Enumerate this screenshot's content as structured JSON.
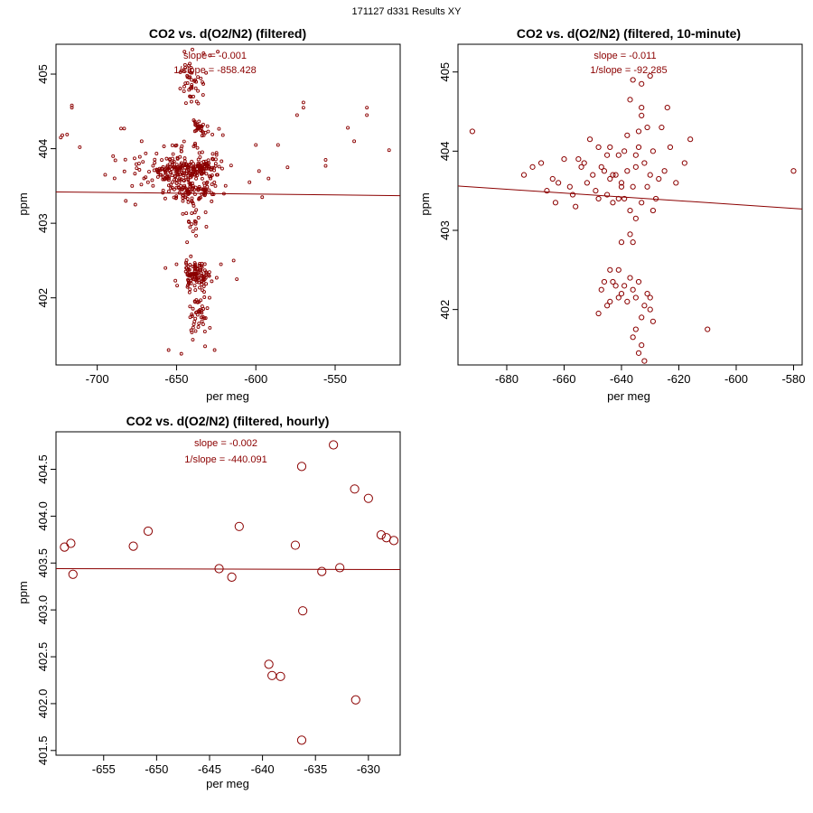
{
  "page_title": "171127  d331  Results XY",
  "colors": {
    "points": "#8b0000",
    "fit": "#8b0000",
    "text": "#8b0000",
    "axes": "#000000"
  },
  "chart_data": [
    {
      "type": "scatter",
      "id": "raw",
      "title": "CO2 vs. d(O2/N2) (filtered)",
      "xlabel": "per meg",
      "ylabel": "ppm",
      "xlim": [
        -726,
        -509
      ],
      "ylim": [
        401.1,
        405.4
      ],
      "xticks": [
        -700,
        -650,
        -600,
        -550
      ],
      "yticks": [
        402,
        403,
        404,
        405
      ],
      "ytick_labels": [
        "402",
        "403",
        "404",
        "405"
      ],
      "slope_label": "slope = -0.001",
      "inv_slope_label": "1/slope = -858.428",
      "fit": {
        "x0": -726,
        "y0": 403.42,
        "x1": -509,
        "y1": 403.37
      },
      "marker_size": "small",
      "generated_points": {
        "seed": 17,
        "clusters": [
          {
            "n": 120,
            "cx": -648,
            "cy": 403.7,
            "sx": 14,
            "sy": 0.12
          },
          {
            "n": 70,
            "cx": -633,
            "cy": 403.75,
            "sx": 10,
            "sy": 0.12
          },
          {
            "n": 100,
            "cx": -641,
            "cy": 403.45,
            "sx": 14,
            "sy": 0.13
          },
          {
            "n": 25,
            "cx": -635,
            "cy": 404.3,
            "sx": 4,
            "sy": 0.08
          },
          {
            "n": 45,
            "cx": -641,
            "cy": 404.9,
            "sx": 7,
            "sy": 0.3
          },
          {
            "n": 40,
            "cx": -640,
            "cy": 404.0,
            "sx": 18,
            "sy": 0.3
          },
          {
            "n": 25,
            "cx": -640,
            "cy": 403.1,
            "sx": 6,
            "sy": 0.25
          },
          {
            "n": 110,
            "cx": -638,
            "cy": 402.3,
            "sx": 8,
            "sy": 0.17
          },
          {
            "n": 45,
            "cx": -636,
            "cy": 401.75,
            "sx": 6,
            "sy": 0.22
          },
          {
            "n": 45,
            "cx": -660,
            "cy": 403.72,
            "sx": 22,
            "sy": 0.22
          }
        ]
      },
      "points": [
        {
          "x": -722,
          "y": 404.18
        },
        {
          "x": -716,
          "y": 404.58
        },
        {
          "x": -716,
          "y": 404.55
        },
        {
          "x": -719,
          "y": 404.19
        },
        {
          "x": -723,
          "y": 404.15
        },
        {
          "x": -711,
          "y": 404.02
        },
        {
          "x": -685,
          "y": 404.27
        },
        {
          "x": -683,
          "y": 404.27
        },
        {
          "x": -695,
          "y": 403.65
        },
        {
          "x": -690,
          "y": 403.9
        },
        {
          "x": -682,
          "y": 403.3
        },
        {
          "x": -678,
          "y": 403.5
        },
        {
          "x": -676,
          "y": 403.25
        },
        {
          "x": -672,
          "y": 404.1
        },
        {
          "x": -668,
          "y": 403.55
        },
        {
          "x": -604,
          "y": 403.55
        },
        {
          "x": -600,
          "y": 404.05
        },
        {
          "x": -598,
          "y": 403.7
        },
        {
          "x": -596,
          "y": 403.35
        },
        {
          "x": -592,
          "y": 403.6
        },
        {
          "x": -586,
          "y": 404.05
        },
        {
          "x": -580,
          "y": 403.75
        },
        {
          "x": -574,
          "y": 404.45
        },
        {
          "x": -570,
          "y": 404.62
        },
        {
          "x": -570,
          "y": 404.55
        },
        {
          "x": -556,
          "y": 403.85
        },
        {
          "x": -556,
          "y": 403.77
        },
        {
          "x": -542,
          "y": 404.28
        },
        {
          "x": -538,
          "y": 404.1
        },
        {
          "x": -530,
          "y": 404.55
        },
        {
          "x": -530,
          "y": 404.45
        },
        {
          "x": -516,
          "y": 403.98
        },
        {
          "x": -614,
          "y": 402.5
        },
        {
          "x": -612,
          "y": 402.25
        },
        {
          "x": -622,
          "y": 402.45
        },
        {
          "x": -650,
          "y": 402.45
        },
        {
          "x": -657,
          "y": 402.4
        },
        {
          "x": -632,
          "y": 401.35
        },
        {
          "x": -647,
          "y": 401.25
        },
        {
          "x": -655,
          "y": 401.3
        },
        {
          "x": -626,
          "y": 401.3
        },
        {
          "x": -645,
          "y": 405.3
        },
        {
          "x": -640,
          "y": 405.33
        },
        {
          "x": -633,
          "y": 405.28
        },
        {
          "x": -629,
          "y": 405.25
        },
        {
          "x": -624,
          "y": 405.3
        }
      ]
    },
    {
      "type": "scatter",
      "id": "ten-minute",
      "title": "CO2 vs. d(O2/N2) (filtered, 10-minute)",
      "xlabel": "per meg",
      "ylabel": "ppm",
      "xlim": [
        -697,
        -577
      ],
      "ylim": [
        401.3,
        405.35
      ],
      "xticks": [
        -680,
        -660,
        -640,
        -620,
        -600,
        -580
      ],
      "yticks": [
        402,
        403,
        404,
        405
      ],
      "ytick_labels": [
        "402",
        "403",
        "404",
        "405"
      ],
      "slope_label": "slope = -0.011",
      "inv_slope_label": "1/slope = -92.285",
      "fit": {
        "x0": -697,
        "y0": 403.56,
        "x1": -577,
        "y1": 403.27
      },
      "marker_size": "medium",
      "points": [
        {
          "x": -692,
          "y": 404.25
        },
        {
          "x": -671,
          "y": 403.8
        },
        {
          "x": -674,
          "y": 403.7
        },
        {
          "x": -664,
          "y": 403.65
        },
        {
          "x": -663,
          "y": 403.35
        },
        {
          "x": -660,
          "y": 403.9
        },
        {
          "x": -658,
          "y": 403.55
        },
        {
          "x": -657,
          "y": 403.45
        },
        {
          "x": -656,
          "y": 403.3
        },
        {
          "x": -654,
          "y": 403.8
        },
        {
          "x": -653,
          "y": 403.85
        },
        {
          "x": -652,
          "y": 403.6
        },
        {
          "x": -651,
          "y": 404.15
        },
        {
          "x": -650,
          "y": 403.7
        },
        {
          "x": -649,
          "y": 403.5
        },
        {
          "x": -648,
          "y": 404.05
        },
        {
          "x": -647,
          "y": 403.8
        },
        {
          "x": -646,
          "y": 403.75
        },
        {
          "x": -645,
          "y": 403.95
        },
        {
          "x": -644,
          "y": 403.65
        },
        {
          "x": -643,
          "y": 403.35
        },
        {
          "x": -642,
          "y": 403.7
        },
        {
          "x": -641,
          "y": 403.4
        },
        {
          "x": -640,
          "y": 403.6
        },
        {
          "x": -639,
          "y": 404.0
        },
        {
          "x": -638,
          "y": 403.75
        },
        {
          "x": -637,
          "y": 404.65
        },
        {
          "x": -636,
          "y": 403.55
        },
        {
          "x": -635,
          "y": 403.95
        },
        {
          "x": -634,
          "y": 404.25
        },
        {
          "x": -633,
          "y": 404.45
        },
        {
          "x": -633,
          "y": 404.55
        },
        {
          "x": -632,
          "y": 403.85
        },
        {
          "x": -631,
          "y": 404.3
        },
        {
          "x": -630,
          "y": 403.7
        },
        {
          "x": -629,
          "y": 404.0
        },
        {
          "x": -628,
          "y": 403.4
        },
        {
          "x": -627,
          "y": 403.65
        },
        {
          "x": -626,
          "y": 404.3
        },
        {
          "x": -625,
          "y": 403.75
        },
        {
          "x": -624,
          "y": 404.55
        },
        {
          "x": -623,
          "y": 404.05
        },
        {
          "x": -621,
          "y": 403.6
        },
        {
          "x": -618,
          "y": 403.85
        },
        {
          "x": -616,
          "y": 404.15
        },
        {
          "x": -648,
          "y": 403.4
        },
        {
          "x": -645,
          "y": 403.45
        },
        {
          "x": -643,
          "y": 403.7
        },
        {
          "x": -641,
          "y": 403.95
        },
        {
          "x": -639,
          "y": 403.4
        },
        {
          "x": -637,
          "y": 403.25
        },
        {
          "x": -635,
          "y": 403.8
        },
        {
          "x": -633,
          "y": 403.35
        },
        {
          "x": -631,
          "y": 403.55
        },
        {
          "x": -629,
          "y": 403.25
        },
        {
          "x": -636,
          "y": 404.9
        },
        {
          "x": -633,
          "y": 404.85
        },
        {
          "x": -630,
          "y": 404.95
        },
        {
          "x": -638,
          "y": 404.2
        },
        {
          "x": -634,
          "y": 404.05
        },
        {
          "x": -662,
          "y": 403.6
        },
        {
          "x": -666,
          "y": 403.5
        },
        {
          "x": -668,
          "y": 403.85
        },
        {
          "x": -655,
          "y": 403.9
        },
        {
          "x": -644,
          "y": 404.05
        },
        {
          "x": -640,
          "y": 403.55
        },
        {
          "x": -580,
          "y": 403.75
        },
        {
          "x": -640,
          "y": 402.85
        },
        {
          "x": -636,
          "y": 402.85
        },
        {
          "x": -635,
          "y": 403.15
        },
        {
          "x": -637,
          "y": 402.95
        },
        {
          "x": -643,
          "y": 402.35
        },
        {
          "x": -641,
          "y": 402.5
        },
        {
          "x": -640,
          "y": 402.2
        },
        {
          "x": -639,
          "y": 402.3
        },
        {
          "x": -638,
          "y": 402.1
        },
        {
          "x": -637,
          "y": 402.4
        },
        {
          "x": -636,
          "y": 402.25
        },
        {
          "x": -635,
          "y": 402.15
        },
        {
          "x": -634,
          "y": 402.35
        },
        {
          "x": -633,
          "y": 401.9
        },
        {
          "x": -632,
          "y": 402.05
        },
        {
          "x": -631,
          "y": 402.2
        },
        {
          "x": -630,
          "y": 402.0
        },
        {
          "x": -629,
          "y": 401.85
        },
        {
          "x": -648,
          "y": 401.95
        },
        {
          "x": -645,
          "y": 402.05
        },
        {
          "x": -644,
          "y": 402.5
        },
        {
          "x": -642,
          "y": 402.3
        },
        {
          "x": -636,
          "y": 401.65
        },
        {
          "x": -635,
          "y": 401.75
        },
        {
          "x": -633,
          "y": 401.55
        },
        {
          "x": -634,
          "y": 401.45
        },
        {
          "x": -632,
          "y": 401.35
        },
        {
          "x": -646,
          "y": 402.35
        },
        {
          "x": -647,
          "y": 402.25
        },
        {
          "x": -641,
          "y": 402.15
        },
        {
          "x": -610,
          "y": 401.75
        },
        {
          "x": -630,
          "y": 402.15
        },
        {
          "x": -644,
          "y": 402.1
        }
      ]
    },
    {
      "type": "scatter",
      "id": "hourly",
      "title": "CO2 vs. d(O2/N2) (filtered, hourly)",
      "xlabel": "per meg",
      "ylabel": "ppm",
      "xlim": [
        -659.5,
        -627.0
      ],
      "ylim": [
        401.45,
        404.9
      ],
      "xticks": [
        -655,
        -650,
        -645,
        -640,
        -635,
        -630
      ],
      "yticks": [
        401.5,
        402.0,
        402.5,
        403.0,
        403.5,
        404.0,
        404.5
      ],
      "ytick_labels": [
        "401.5",
        "402.0",
        "402.5",
        "403.0",
        "403.5",
        "404.0",
        "404.5"
      ],
      "slope_label": "slope = -0.002",
      "inv_slope_label": "1/slope = -440.091",
      "fit": {
        "x0": -659.5,
        "y0": 403.44,
        "x1": -627.0,
        "y1": 403.43
      },
      "marker_size": "large",
      "points": [
        {
          "x": -658.7,
          "y": 403.67
        },
        {
          "x": -658.1,
          "y": 403.71
        },
        {
          "x": -657.9,
          "y": 403.38
        },
        {
          "x": -652.2,
          "y": 403.68
        },
        {
          "x": -650.8,
          "y": 403.84
        },
        {
          "x": -644.1,
          "y": 403.44
        },
        {
          "x": -642.9,
          "y": 403.35
        },
        {
          "x": -642.2,
          "y": 403.89
        },
        {
          "x": -639.4,
          "y": 402.42
        },
        {
          "x": -639.1,
          "y": 402.3
        },
        {
          "x": -638.3,
          "y": 402.29
        },
        {
          "x": -636.9,
          "y": 403.69
        },
        {
          "x": -636.3,
          "y": 404.53
        },
        {
          "x": -636.2,
          "y": 402.99
        },
        {
          "x": -636.3,
          "y": 401.61
        },
        {
          "x": -634.4,
          "y": 403.41
        },
        {
          "x": -633.3,
          "y": 404.76
        },
        {
          "x": -632.7,
          "y": 403.45
        },
        {
          "x": -631.3,
          "y": 404.29
        },
        {
          "x": -631.2,
          "y": 402.04
        },
        {
          "x": -630.0,
          "y": 404.19
        },
        {
          "x": -628.8,
          "y": 403.8
        },
        {
          "x": -628.3,
          "y": 403.77
        },
        {
          "x": -627.6,
          "y": 403.74
        }
      ]
    }
  ]
}
